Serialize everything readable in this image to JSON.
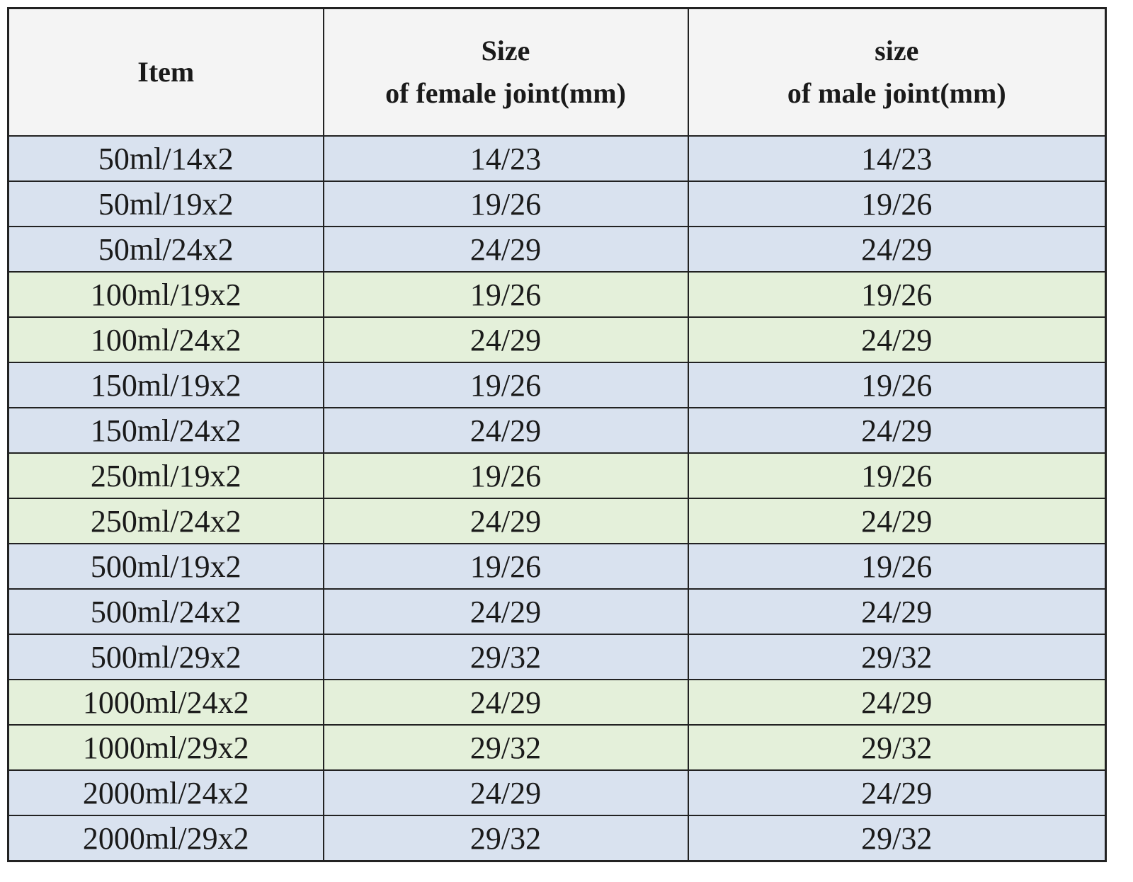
{
  "table": {
    "header": [
      "Item",
      "Size\nof female joint(mm)",
      "size\nof male joint(mm)"
    ],
    "rows": [
      [
        "50ml/14x2",
        "14/23",
        "14/23"
      ],
      [
        "50ml/19x2",
        "19/26",
        "19/26"
      ],
      [
        "50ml/24x2",
        "24/29",
        "24/29"
      ],
      [
        "100ml/19x2",
        "19/26",
        "19/26"
      ],
      [
        "100ml/24x2",
        "24/29",
        "24/29"
      ],
      [
        "150ml/19x2",
        "19/26",
        "19/26"
      ],
      [
        "150ml/24x2",
        "24/29",
        "24/29"
      ],
      [
        "250ml/19x2",
        "19/26",
        "19/26"
      ],
      [
        "250ml/24x2",
        "24/29",
        "24/29"
      ],
      [
        "500ml/19x2",
        "19/26",
        "19/26"
      ],
      [
        "500ml/24x2",
        "24/29",
        "24/29"
      ],
      [
        "500ml/29x2",
        "29/32",
        "29/32"
      ],
      [
        "1000ml/24x2",
        "24/29",
        "24/29"
      ],
      [
        "1000ml/29x2",
        "29/32",
        "29/32"
      ],
      [
        "2000ml/24x2",
        "24/29",
        "24/29"
      ],
      [
        "2000ml/29x2",
        "29/32",
        "29/32"
      ]
    ],
    "row_colors": [
      "#d9e2ef",
      "#d9e2ef",
      "#d9e2ef",
      "#e4f0da",
      "#e4f0da",
      "#d9e2ef",
      "#d9e2ef",
      "#e4f0da",
      "#e4f0da",
      "#d9e2ef",
      "#d9e2ef",
      "#d9e2ef",
      "#e4f0da",
      "#e4f0da",
      "#d9e2ef",
      "#d9e2ef"
    ]
  }
}
